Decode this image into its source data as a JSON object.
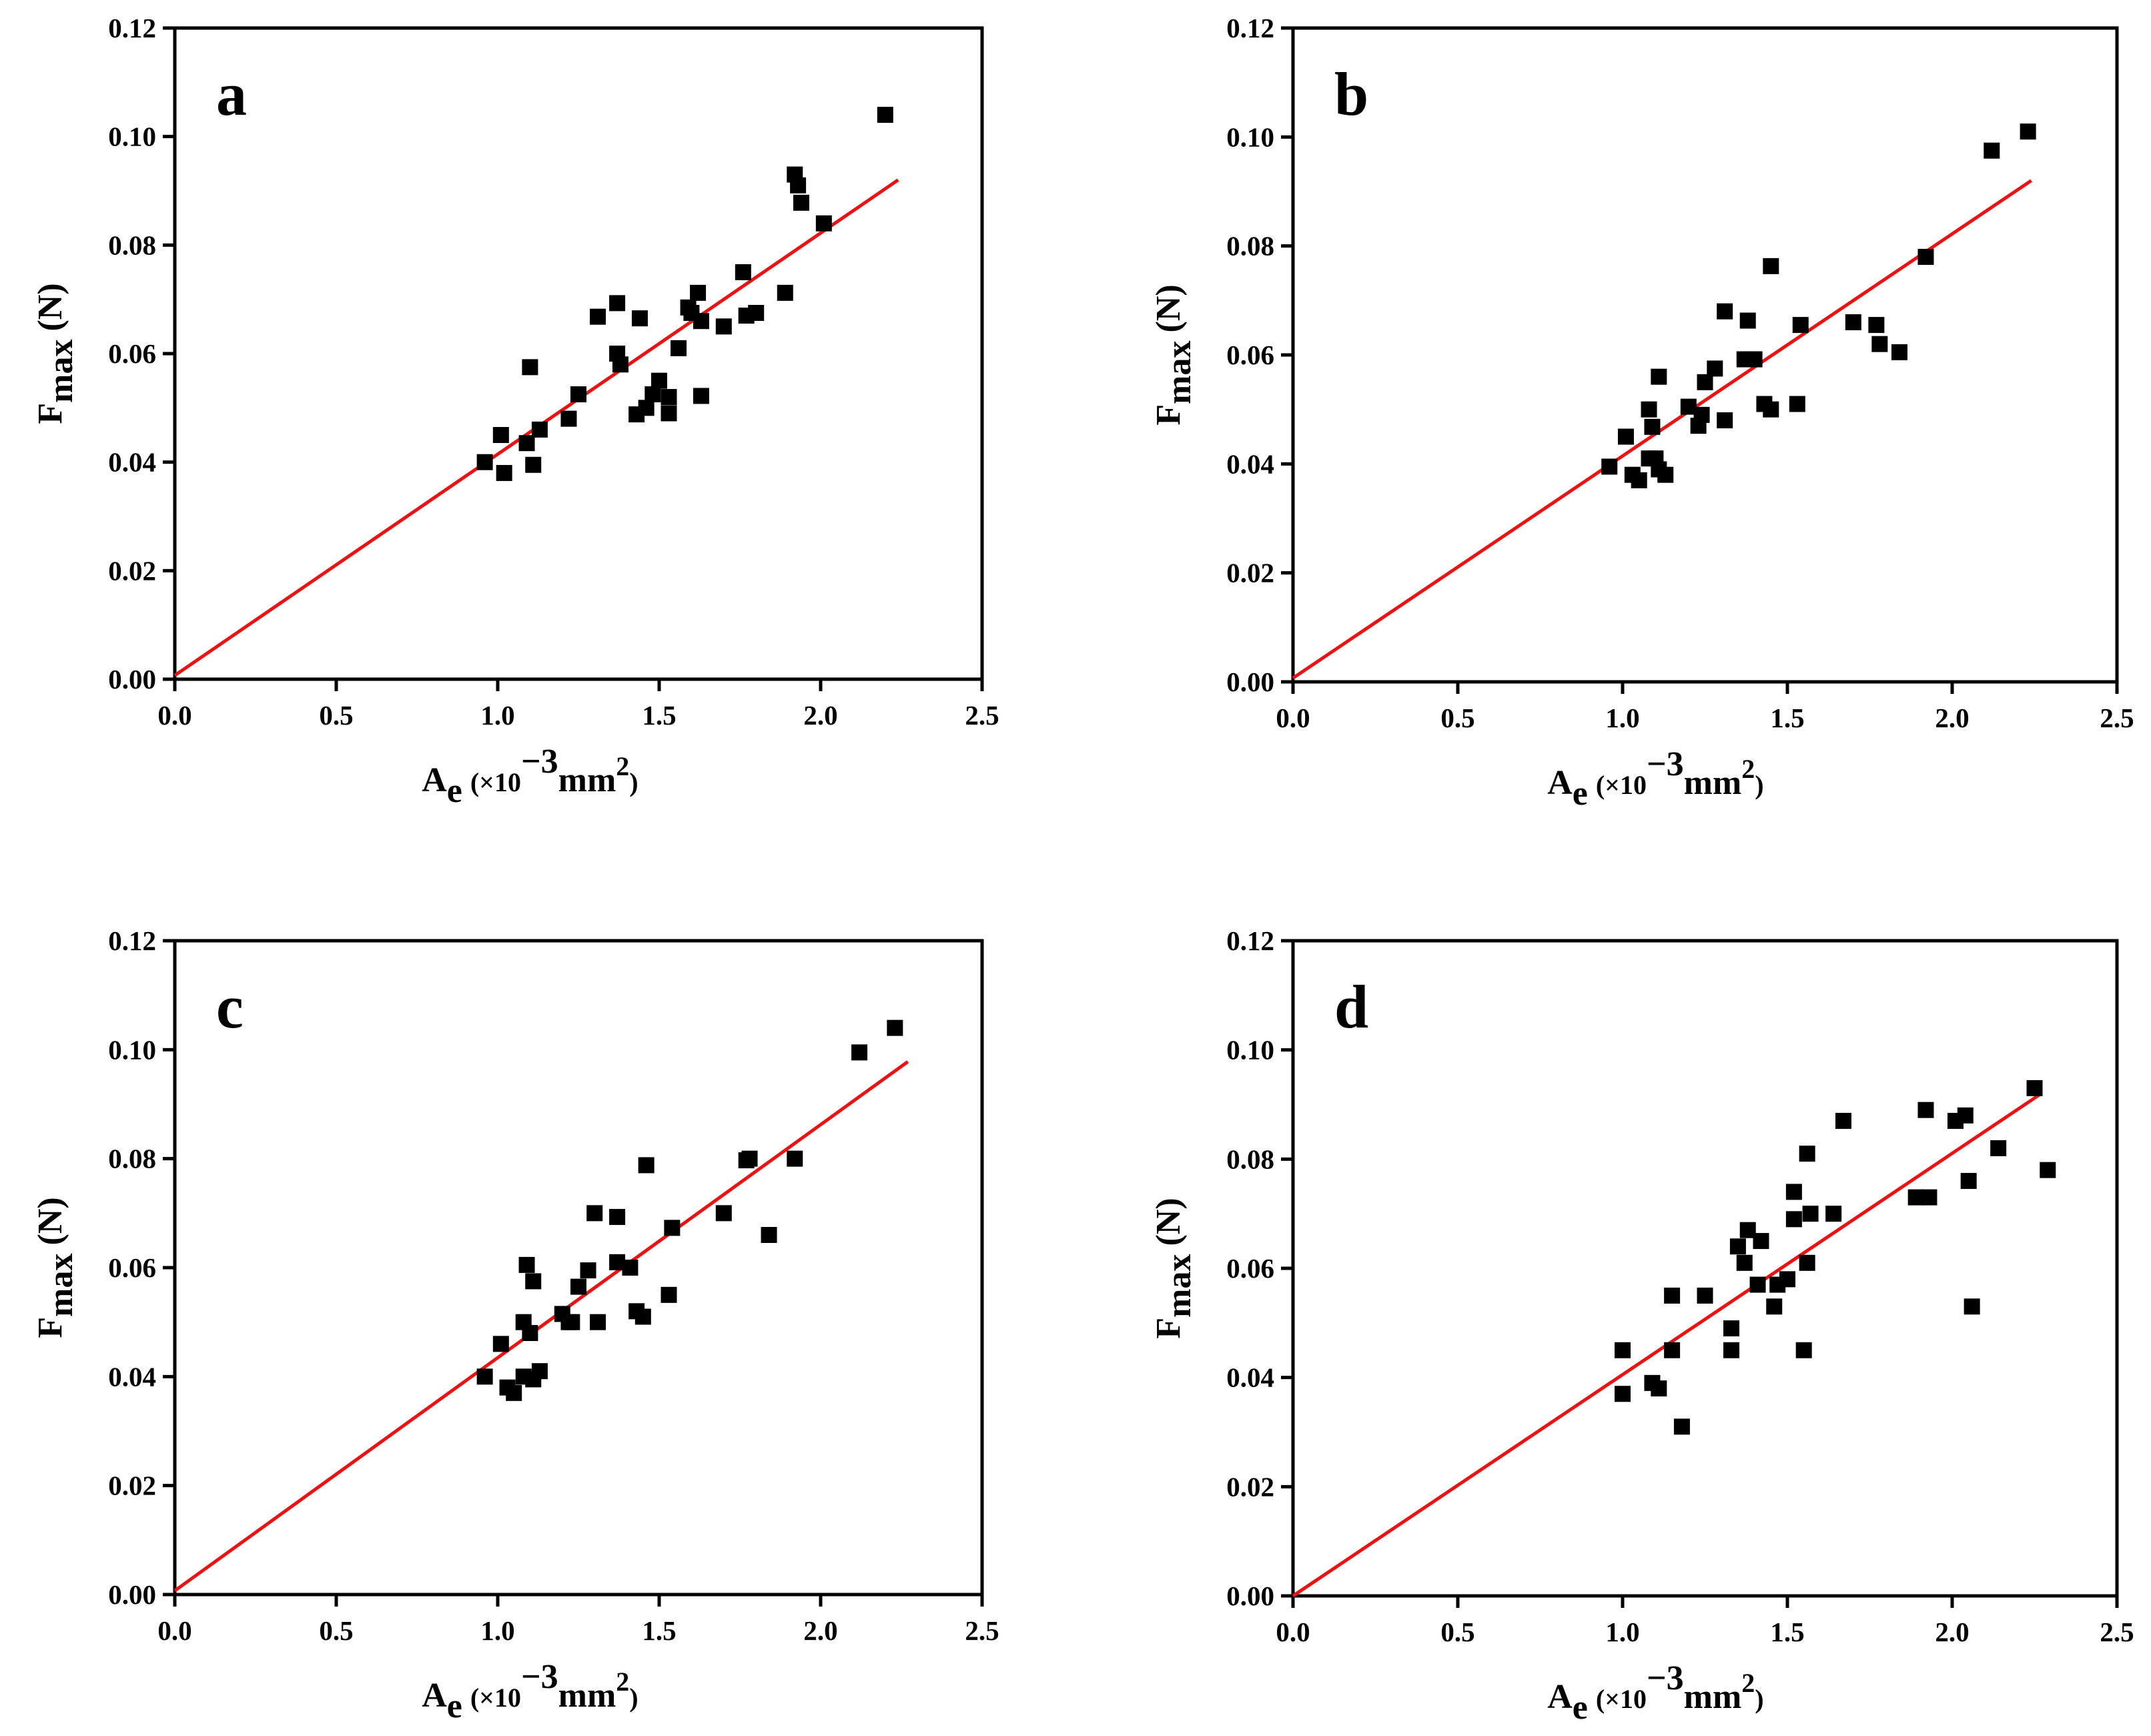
{
  "colors": {
    "marker": "#000000",
    "fit_line": "#ee1111",
    "axes": "#000000",
    "background": "#ffffff"
  },
  "chart_data": [
    {
      "type": "scatter",
      "panel": "a",
      "xlabel": {
        "main": "A",
        "sub": "e",
        "pre": "(×10",
        "sup": "−3",
        "mid": "mm",
        "sup2": "2",
        "post": ")"
      },
      "ylabel": {
        "main": "F",
        "sub": "max",
        "post": "(N)"
      },
      "xlim": [
        0,
        2.5
      ],
      "ylim": [
        0,
        0.12
      ],
      "xticks": [
        "0.0",
        "0.5",
        "1.0",
        "1.5",
        "2.0",
        "2.5"
      ],
      "yticks": [
        "0.00",
        "0.02",
        "0.04",
        "0.06",
        "0.08",
        "0.10",
        "0.12"
      ],
      "fit_line": {
        "x": [
          0.0,
          2.24
        ],
        "y": [
          0.0007,
          0.092
        ]
      },
      "points": [
        [
          0.96,
          0.04
        ],
        [
          1.01,
          0.045
        ],
        [
          1.02,
          0.038
        ],
        [
          1.09,
          0.0435
        ],
        [
          1.1,
          0.0575
        ],
        [
          1.11,
          0.0395
        ],
        [
          1.13,
          0.046
        ],
        [
          1.22,
          0.048
        ],
        [
          1.25,
          0.0525
        ],
        [
          1.31,
          0.0668
        ],
        [
          1.37,
          0.06
        ],
        [
          1.37,
          0.0693
        ],
        [
          1.38,
          0.058
        ],
        [
          1.43,
          0.0488
        ],
        [
          1.44,
          0.0665
        ],
        [
          1.46,
          0.05
        ],
        [
          1.48,
          0.0525
        ],
        [
          1.5,
          0.055
        ],
        [
          1.53,
          0.049
        ],
        [
          1.53,
          0.052
        ],
        [
          1.56,
          0.061
        ],
        [
          1.59,
          0.0685
        ],
        [
          1.6,
          0.0675
        ],
        [
          1.62,
          0.0712
        ],
        [
          1.63,
          0.0522
        ],
        [
          1.63,
          0.066
        ],
        [
          1.7,
          0.065
        ],
        [
          1.76,
          0.075
        ],
        [
          1.77,
          0.067
        ],
        [
          1.8,
          0.0675
        ],
        [
          1.89,
          0.0712
        ],
        [
          1.92,
          0.093
        ],
        [
          1.93,
          0.091
        ],
        [
          1.94,
          0.0878
        ],
        [
          2.01,
          0.084
        ],
        [
          2.2,
          0.104
        ]
      ]
    },
    {
      "type": "scatter",
      "panel": "b",
      "xlabel": {
        "main": "A",
        "sub": "e",
        "pre": "(×10",
        "sup": "−3",
        "mid": "mm",
        "sup2": "2",
        "post": ")"
      },
      "ylabel": {
        "main": "F",
        "sub": "max",
        "post": "(N)"
      },
      "xlim": [
        0,
        2.5
      ],
      "ylim": [
        0,
        0.12
      ],
      "xticks": [
        "0.0",
        "0.5",
        "1.0",
        "1.5",
        "2.0",
        "2.5"
      ],
      "yticks": [
        "0.00",
        "0.02",
        "0.04",
        "0.06",
        "0.08",
        "0.10",
        "0.12"
      ],
      "fit_line": {
        "x": [
          0.0,
          2.24
        ],
        "y": [
          0.0007,
          0.092
        ]
      },
      "points": [
        [
          0.96,
          0.0395
        ],
        [
          1.01,
          0.045
        ],
        [
          1.03,
          0.038
        ],
        [
          1.05,
          0.037
        ],
        [
          1.08,
          0.05
        ],
        [
          1.08,
          0.041
        ],
        [
          1.09,
          0.0468
        ],
        [
          1.1,
          0.041
        ],
        [
          1.11,
          0.039
        ],
        [
          1.11,
          0.056
        ],
        [
          1.13,
          0.038
        ],
        [
          1.2,
          0.0505
        ],
        [
          1.23,
          0.047
        ],
        [
          1.24,
          0.049
        ],
        [
          1.25,
          0.055
        ],
        [
          1.28,
          0.0575
        ],
        [
          1.31,
          0.068
        ],
        [
          1.31,
          0.048
        ],
        [
          1.37,
          0.0592
        ],
        [
          1.38,
          0.0663
        ],
        [
          1.4,
          0.0592
        ],
        [
          1.43,
          0.051
        ],
        [
          1.45,
          0.05
        ],
        [
          1.45,
          0.0763
        ],
        [
          1.53,
          0.051
        ],
        [
          1.54,
          0.0655
        ],
        [
          1.7,
          0.066
        ],
        [
          1.77,
          0.0655
        ],
        [
          1.78,
          0.062
        ],
        [
          1.84,
          0.0605
        ],
        [
          1.92,
          0.078
        ],
        [
          2.12,
          0.0975
        ],
        [
          2.23,
          0.101
        ]
      ]
    },
    {
      "type": "scatter",
      "panel": "c",
      "xlabel": {
        "main": "A",
        "sub": "e",
        "pre": "(×10",
        "sup": "−3",
        "mid": "mm",
        "sup2": "2",
        "post": ")"
      },
      "ylabel": {
        "main": "F",
        "sub": "max",
        "post": "(N)"
      },
      "xlim": [
        0,
        2.5
      ],
      "ylim": [
        0,
        0.12
      ],
      "xticks": [
        "0.0",
        "0.5",
        "1.0",
        "1.5",
        "2.0",
        "2.5"
      ],
      "yticks": [
        "0.00",
        "0.02",
        "0.04",
        "0.06",
        "0.08",
        "0.10",
        "0.12"
      ],
      "fit_line": {
        "x": [
          0.0,
          2.27
        ],
        "y": [
          0.0007,
          0.0978
        ]
      },
      "points": [
        [
          0.96,
          0.04
        ],
        [
          1.01,
          0.046
        ],
        [
          1.03,
          0.038
        ],
        [
          1.05,
          0.037
        ],
        [
          1.08,
          0.05
        ],
        [
          1.08,
          0.04
        ],
        [
          1.09,
          0.0605
        ],
        [
          1.1,
          0.048
        ],
        [
          1.11,
          0.0575
        ],
        [
          1.11,
          0.0395
        ],
        [
          1.13,
          0.041
        ],
        [
          1.2,
          0.0515
        ],
        [
          1.22,
          0.05
        ],
        [
          1.23,
          0.05
        ],
        [
          1.25,
          0.0565
        ],
        [
          1.28,
          0.0595
        ],
        [
          1.3,
          0.07
        ],
        [
          1.31,
          0.05
        ],
        [
          1.37,
          0.061
        ],
        [
          1.37,
          0.0693
        ],
        [
          1.41,
          0.06
        ],
        [
          1.43,
          0.052
        ],
        [
          1.45,
          0.051
        ],
        [
          1.46,
          0.0788
        ],
        [
          1.53,
          0.055
        ],
        [
          1.54,
          0.0673
        ],
        [
          1.7,
          0.07
        ],
        [
          1.77,
          0.0797
        ],
        [
          1.78,
          0.08
        ],
        [
          1.84,
          0.066
        ],
        [
          1.92,
          0.08
        ],
        [
          2.12,
          0.0995
        ],
        [
          2.23,
          0.104
        ]
      ]
    },
    {
      "type": "scatter",
      "panel": "d",
      "xlabel": {
        "main": "A",
        "sub": "e",
        "pre": "(×10",
        "sup": "−3",
        "mid": "mm",
        "sup2": "2",
        "post": ")"
      },
      "ylabel": {
        "main": "F",
        "sub": "max",
        "post": "(N)"
      },
      "xlim": [
        0,
        2.5
      ],
      "ylim": [
        0,
        0.12
      ],
      "xticks": [
        "0.0",
        "0.5",
        "1.0",
        "1.5",
        "2.0",
        "2.5"
      ],
      "yticks": [
        "0.00",
        "0.02",
        "0.04",
        "0.06",
        "0.08",
        "0.10",
        "0.12"
      ],
      "fit_line": {
        "x": [
          0.0,
          2.27
        ],
        "y": [
          0.0,
          0.092
        ]
      },
      "points": [
        [
          1.0,
          0.045
        ],
        [
          1.0,
          0.037
        ],
        [
          1.09,
          0.039
        ],
        [
          1.11,
          0.038
        ],
        [
          1.15,
          0.055
        ],
        [
          1.15,
          0.045
        ],
        [
          1.18,
          0.031
        ],
        [
          1.25,
          0.055
        ],
        [
          1.33,
          0.049
        ],
        [
          1.33,
          0.045
        ],
        [
          1.35,
          0.064
        ],
        [
          1.37,
          0.061
        ],
        [
          1.38,
          0.067
        ],
        [
          1.41,
          0.057
        ],
        [
          1.42,
          0.065
        ],
        [
          1.46,
          0.053
        ],
        [
          1.47,
          0.057
        ],
        [
          1.5,
          0.058
        ],
        [
          1.52,
          0.069
        ],
        [
          1.52,
          0.074
        ],
        [
          1.55,
          0.045
        ],
        [
          1.56,
          0.061
        ],
        [
          1.56,
          0.081
        ],
        [
          1.57,
          0.07
        ],
        [
          1.64,
          0.07
        ],
        [
          1.67,
          0.087
        ],
        [
          1.89,
          0.073
        ],
        [
          1.92,
          0.089
        ],
        [
          1.93,
          0.073
        ],
        [
          2.01,
          0.087
        ],
        [
          2.04,
          0.088
        ],
        [
          2.05,
          0.076
        ],
        [
          2.06,
          0.053
        ],
        [
          2.14,
          0.082
        ],
        [
          2.25,
          0.093
        ],
        [
          2.29,
          0.078
        ]
      ]
    }
  ]
}
